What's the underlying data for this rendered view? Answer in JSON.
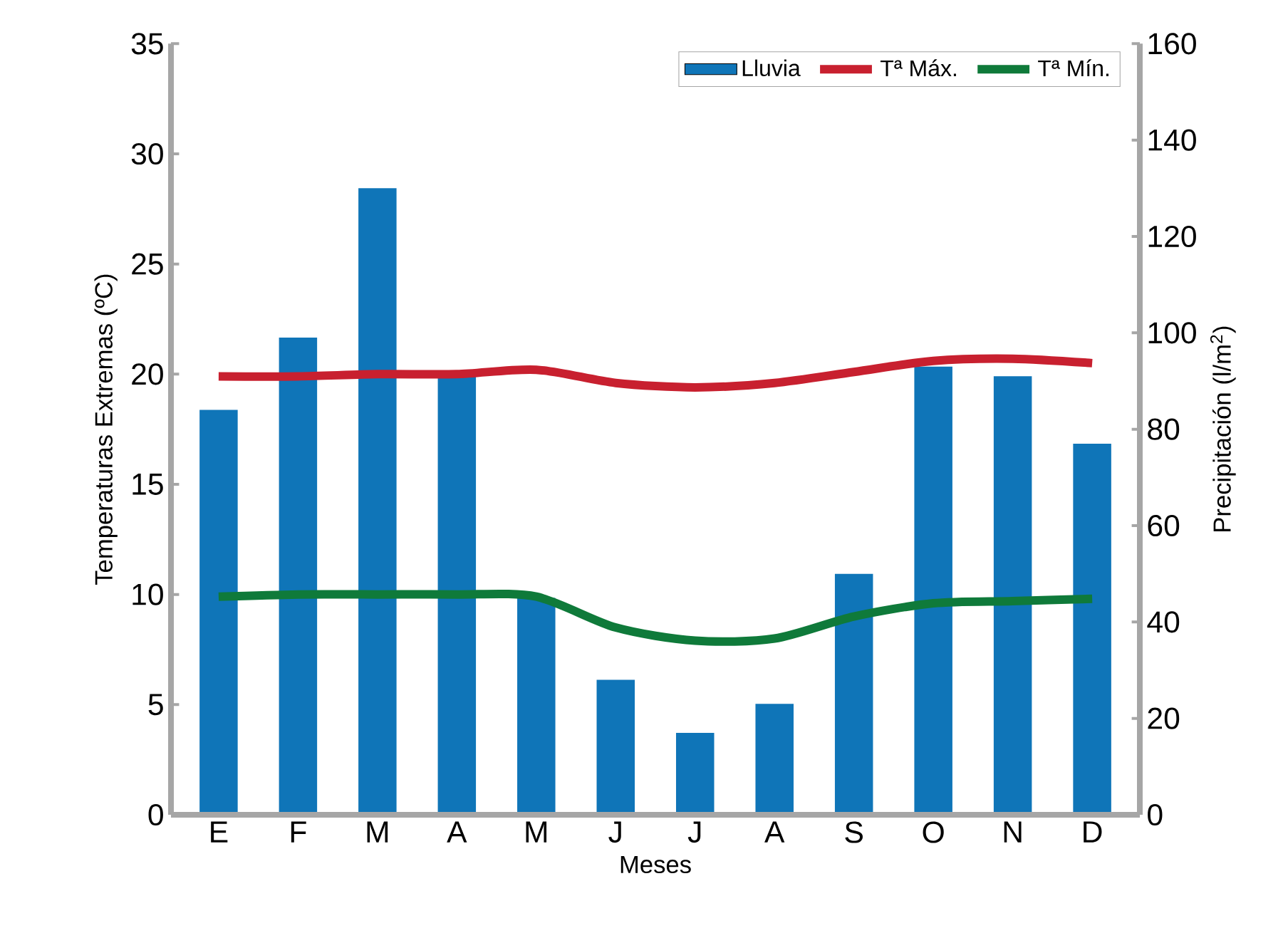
{
  "chart_data": {
    "type": "bar",
    "xlabel": "Meses",
    "ylabel": "Temperaturas Extremas (ºC)",
    "y2label": "Precipitación (l/m$^{2}$)",
    "categories": [
      "E",
      "F",
      "M",
      "A",
      "M",
      "J",
      "J",
      "A",
      "S",
      "O",
      "N",
      "D"
    ],
    "series": [
      {
        "name": "Lluvia",
        "axis": "y2",
        "color": "#0f75b8",
        "values": [
          84,
          99,
          130,
          91,
          45,
          28,
          17,
          23,
          50,
          93,
          91,
          77
        ]
      },
      {
        "name": "Tª Máx.",
        "type": "line",
        "color": "#c8202f",
        "values": [
          19.9,
          19.9,
          20.0,
          20.0,
          20.2,
          19.6,
          19.4,
          19.6,
          20.1,
          20.6,
          20.7,
          20.5
        ]
      },
      {
        "name": "Tª Mín.",
        "type": "line",
        "color": "#0f7a3a",
        "values": [
          9.9,
          10.0,
          10.0,
          10.0,
          9.9,
          8.5,
          7.9,
          8.0,
          9.0,
          9.6,
          9.7,
          9.8
        ]
      }
    ],
    "ylim": [
      0,
      35
    ],
    "yticks": [
      0,
      5,
      10,
      15,
      20,
      25,
      30,
      35
    ],
    "y2lim": [
      0,
      160
    ],
    "y2ticks": [
      0,
      20,
      40,
      60,
      80,
      100,
      120,
      140,
      160
    ],
    "legend": "top right"
  }
}
